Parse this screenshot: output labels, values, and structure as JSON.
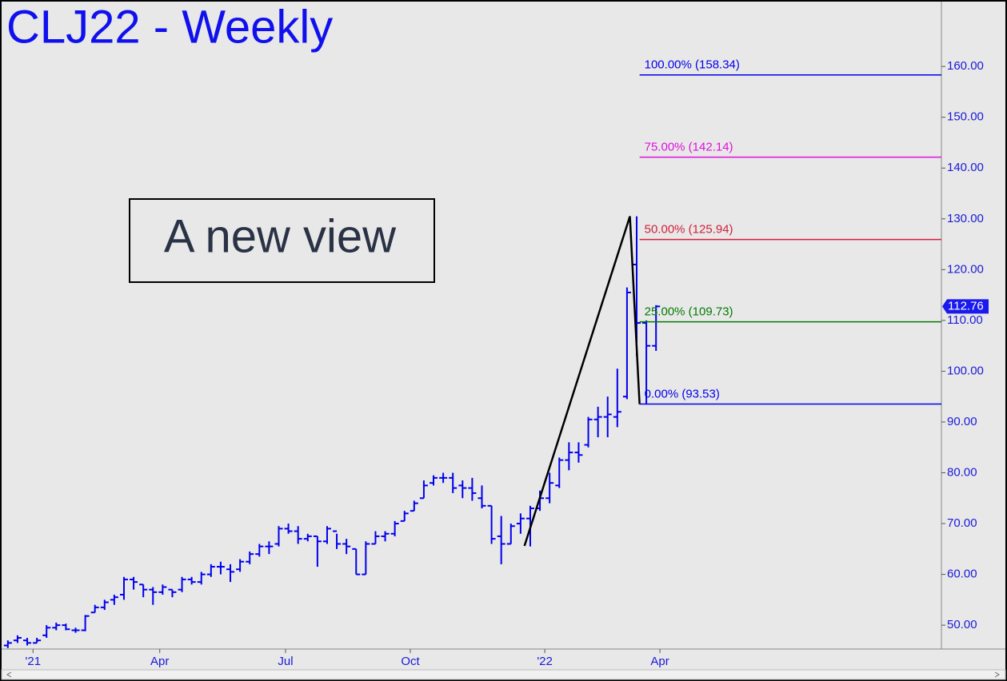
{
  "chart_data": {
    "type": "ohlc",
    "title": "CLJ22 - Weekly",
    "annotation": "A new view",
    "color": "#0000ee",
    "x": [
      0,
      1,
      2,
      3,
      4,
      5,
      6,
      7,
      8,
      9,
      10,
      11,
      12,
      13,
      14,
      15,
      16,
      17,
      18,
      19,
      20,
      21,
      22,
      23,
      24,
      25,
      26,
      27,
      28,
      29,
      30,
      31,
      32,
      33,
      34,
      35,
      36,
      37,
      38,
      39,
      40,
      41,
      42,
      43,
      44,
      45,
      46,
      47,
      48,
      49,
      50,
      51,
      52,
      53,
      54,
      55,
      56,
      57,
      58,
      59,
      60,
      61,
      62,
      63,
      64,
      65,
      66,
      67
    ],
    "open": [
      46,
      47,
      47,
      46.5,
      48,
      49.5,
      50,
      49,
      49,
      52.5,
      53.5,
      55,
      56,
      59,
      58,
      57,
      56.5,
      57,
      57,
      59,
      58.5,
      60,
      61.5,
      61,
      61,
      62.5,
      64,
      65.5,
      66,
      69,
      68.5,
      67,
      67.5,
      66.5,
      68.5,
      66,
      65,
      60,
      66,
      67.5,
      68,
      70.5,
      72.5,
      75,
      78,
      79,
      79,
      77.5,
      77,
      75,
      73.5,
      67.5,
      66,
      70,
      71,
      73,
      75,
      77.5,
      82.5,
      84,
      85.5,
      90.5,
      91,
      91,
      95,
      121,
      109.5,
      105
    ],
    "high": [
      47,
      48,
      47.5,
      47.5,
      50,
      50.5,
      50.3,
      49.5,
      52,
      54,
      55,
      56,
      59.5,
      59.5,
      58,
      57.5,
      58,
      57,
      59.5,
      59.5,
      60.5,
      62,
      62.5,
      62,
      63,
      64.5,
      66,
      66.5,
      69.5,
      70,
      69.5,
      68,
      67.5,
      69.5,
      68,
      67,
      65,
      66.5,
      68.5,
      68.5,
      70.5,
      72.5,
      74.5,
      78.5,
      79.5,
      80,
      80,
      78.5,
      79,
      77.5,
      73.5,
      71.5,
      70,
      72,
      73.5,
      76.5,
      80,
      83,
      86,
      86,
      91,
      93,
      95,
      100.5,
      116.5,
      130.5,
      110,
      113
    ],
    "low": [
      45.5,
      46.5,
      46,
      46.5,
      47.5,
      49,
      49,
      48.5,
      48.8,
      52.5,
      53,
      54,
      55,
      57,
      55.5,
      54,
      56,
      55.5,
      56.5,
      58,
      58,
      59.5,
      60,
      58.5,
      60.5,
      62,
      63.5,
      64,
      65.5,
      68,
      66,
      66.5,
      61.5,
      66,
      65,
      64,
      60,
      60,
      66,
      66.5,
      67.5,
      70.5,
      72.5,
      75,
      77.5,
      78,
      76,
      75,
      74.5,
      73,
      66,
      62,
      66,
      68,
      65.5,
      72.5,
      74,
      77,
      80.5,
      82,
      85,
      87,
      87,
      89,
      94.5,
      103,
      93.5,
      104
    ],
    "close": [
      46.5,
      47.5,
      46.5,
      47,
      49.5,
      50,
      49.2,
      49,
      51.8,
      53.5,
      54.5,
      55.5,
      59,
      58.5,
      57,
      56.5,
      57.5,
      56.5,
      59,
      58.5,
      60,
      61.5,
      61.5,
      60.5,
      62.5,
      64,
      65.5,
      65.5,
      69,
      68.5,
      67,
      67.5,
      66.5,
      69,
      66,
      65.5,
      60,
      66,
      67.5,
      68,
      70,
      72,
      74,
      77.5,
      79,
      79,
      77,
      77,
      76,
      73.5,
      67,
      66,
      69.5,
      71,
      73,
      75,
      78,
      82.5,
      84,
      83.5,
      90.5,
      91,
      91.5,
      92,
      115.5,
      109.5,
      105,
      112.76
    ],
    "last_price": 112.76,
    "xlim": [
      -0.4,
      96.5
    ],
    "xticks": [
      {
        "value": 2.6,
        "label": "'21"
      },
      {
        "value": 15.7,
        "label": "Apr"
      },
      {
        "value": 28.7,
        "label": "Jul"
      },
      {
        "value": 41.6,
        "label": "Oct"
      },
      {
        "value": 55.5,
        "label": "'22"
      },
      {
        "value": 67.4,
        "label": "Apr"
      }
    ],
    "ylim": [
      45.3,
      172.3
    ],
    "yticks": [
      {
        "value": 50,
        "label": "50.00"
      },
      {
        "value": 60,
        "label": "60.00"
      },
      {
        "value": 70,
        "label": "70.00"
      },
      {
        "value": 80,
        "label": "80.00"
      },
      {
        "value": 90,
        "label": "90.00"
      },
      {
        "value": 100,
        "label": "100.00"
      },
      {
        "value": 110,
        "label": "110.00"
      },
      {
        "value": 120,
        "label": "120.00"
      },
      {
        "value": 130,
        "label": "130.00"
      },
      {
        "value": 140,
        "label": "140.00"
      },
      {
        "value": 150,
        "label": "150.00"
      },
      {
        "value": 160,
        "label": "160.00"
      }
    ],
    "pattern": {
      "x": [
        53.4,
        64.3,
        65.3
      ],
      "y": [
        65.6,
        130.5,
        93.5
      ],
      "color": "#000000"
    },
    "levels": [
      {
        "label": "100.00% (158.34)",
        "value": 158.34,
        "color": "#0000ee"
      },
      {
        "label": "75.00% (142.14)",
        "value": 142.14,
        "color": "#e010e0"
      },
      {
        "label": "50.00% (125.94)",
        "value": 125.94,
        "color": "#d0203a"
      },
      {
        "label": "25.00% (109.73)",
        "value": 109.73,
        "color": "#007a00"
      },
      {
        "label": "0.00% (93.53)",
        "value": 93.53,
        "color": "#0000ee"
      }
    ]
  }
}
